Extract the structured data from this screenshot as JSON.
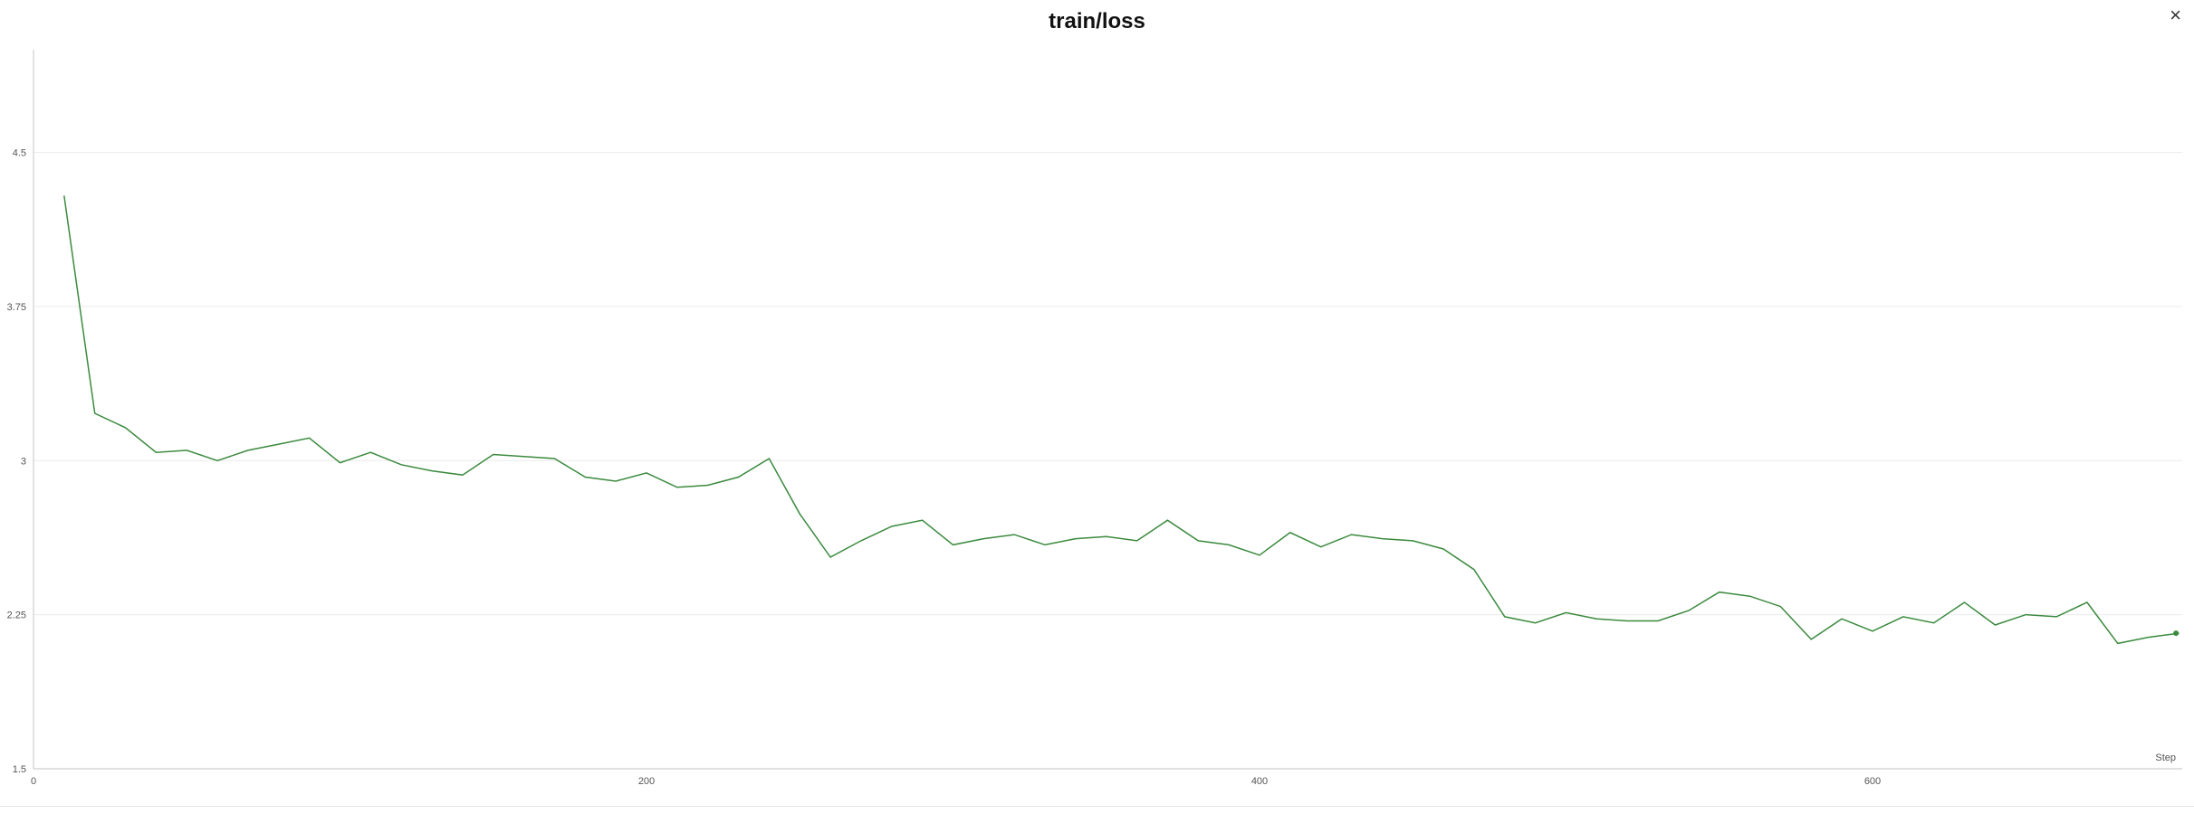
{
  "header": {
    "title": "train/loss",
    "close_glyph": "×"
  },
  "chart_data": {
    "type": "line",
    "title": "train/loss",
    "xlabel": "Step",
    "ylabel": "",
    "xlim": [
      0,
      700
    ],
    "ylim": [
      1.5,
      5.0
    ],
    "x_ticks": [
      0,
      200,
      400,
      600
    ],
    "x_tick_labels": [
      "0",
      "200",
      "400",
      "600"
    ],
    "y_ticks": [
      1.5,
      2.25,
      3,
      3.75,
      4.5
    ],
    "y_tick_labels": [
      "1.5",
      "2.25",
      "3",
      "3.75",
      "4.5"
    ],
    "grid": true,
    "line_color": "#3b8a3e",
    "series": [
      {
        "x": [
          10,
          20,
          30,
          40,
          50,
          60,
          70,
          80,
          90,
          100,
          110,
          120,
          130,
          140,
          150,
          160,
          170,
          180,
          190,
          200,
          210,
          220,
          230,
          240,
          250,
          260,
          270,
          280,
          290,
          300,
          310,
          320,
          330,
          340,
          350,
          360,
          370,
          380,
          390,
          400,
          410,
          420,
          430,
          440,
          450,
          460,
          470,
          480,
          490,
          500,
          510,
          520,
          530,
          540,
          550,
          560,
          570,
          580,
          590,
          600,
          610,
          620,
          630,
          640,
          650,
          660,
          670,
          680,
          690,
          700
        ],
        "y": [
          4.29,
          3.23,
          3.16,
          3.04,
          3.05,
          3.0,
          3.05,
          3.08,
          3.11,
          2.99,
          3.04,
          2.98,
          2.95,
          2.93,
          3.03,
          3.02,
          3.01,
          2.92,
          2.9,
          2.94,
          2.87,
          2.88,
          2.92,
          3.01,
          2.74,
          2.53,
          2.61,
          2.68,
          2.71,
          2.59,
          2.62,
          2.64,
          2.59,
          2.62,
          2.63,
          2.61,
          2.71,
          2.61,
          2.59,
          2.54,
          2.65,
          2.58,
          2.64,
          2.62,
          2.61,
          2.57,
          2.47,
          2.24,
          2.21,
          2.26,
          2.23,
          2.22,
          2.22,
          2.27,
          2.36,
          2.34,
          2.29,
          2.13,
          2.23,
          2.17,
          2.24,
          2.21,
          2.31,
          2.2,
          2.25,
          2.24,
          2.31,
          2.11,
          2.14,
          2.16
        ]
      }
    ]
  }
}
